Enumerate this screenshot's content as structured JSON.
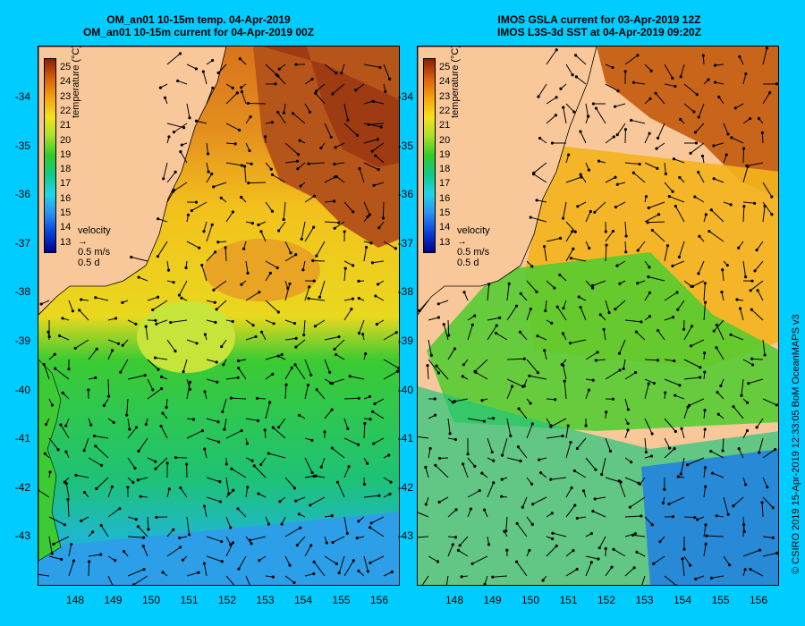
{
  "left_panel": {
    "title_line1": "OM_an01 10-15m temp. 04-Apr-2019",
    "title_line2": "OM_an01 10-15m current for 04-Apr-2019 00Z"
  },
  "right_panel": {
    "title_line1": "IMOS GSLA current for 03-Apr-2019 12Z",
    "title_line2": "IMOS L3S-3d SST at 04-Apr-2019 09:20Z"
  },
  "latitudes": [
    "-34",
    "-35",
    "-36",
    "-37",
    "-38",
    "-39",
    "-40",
    "-41",
    "-42",
    "-43"
  ],
  "longitudes": [
    "148",
    "149",
    "150",
    "151",
    "152",
    "153",
    "154",
    "155",
    "156"
  ],
  "colorbar": {
    "ticks": [
      "25",
      "24",
      "23",
      "22",
      "21",
      "20",
      "19",
      "18",
      "17",
      "16",
      "15",
      "14",
      "13"
    ],
    "label": "temperature (°C)"
  },
  "velocity_legend": {
    "title": "velocity",
    "speed": "0.5 m/s",
    "duration": "0.5 d"
  },
  "credit": "© CSIRO 2019  15-Apr-2019 12:33:05 BoM OceanMAPS v3",
  "colors": {
    "background": "#00ccff",
    "land": "#f8c89a",
    "coastline": "#000000"
  }
}
